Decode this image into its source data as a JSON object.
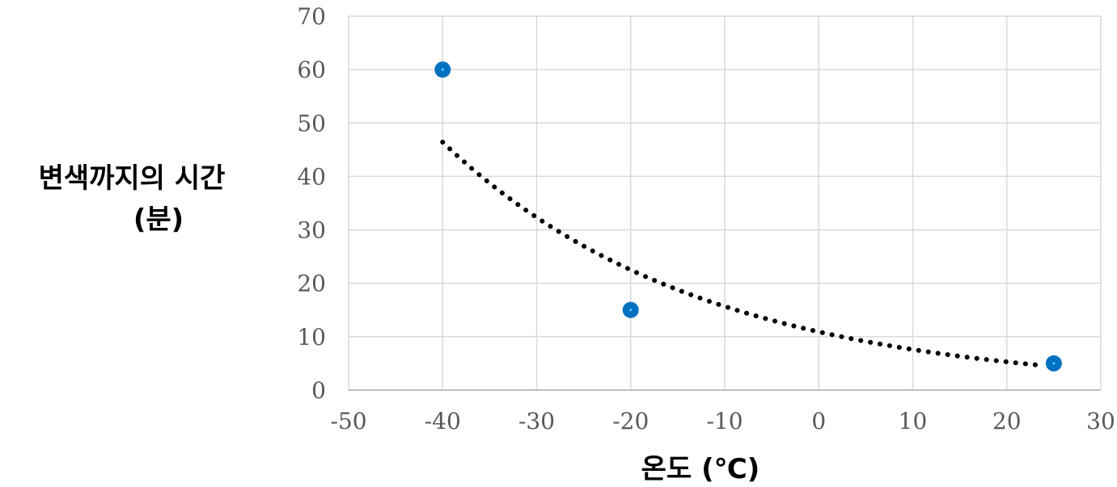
{
  "chart_data": {
    "type": "scatter",
    "title": "",
    "xlabel": "온도 (℃)",
    "ylabel_lines": [
      "변색까지의 시간",
      "(분)"
    ],
    "xlim": [
      -50,
      30
    ],
    "ylim": [
      0,
      70
    ],
    "x_ticks": [
      -50,
      -40,
      -30,
      -20,
      -10,
      0,
      10,
      20,
      30
    ],
    "y_ticks": [
      0,
      10,
      20,
      30,
      40,
      50,
      60,
      70
    ],
    "grid": true,
    "series": [
      {
        "points": [
          {
            "x": -40,
            "y": 60
          },
          {
            "x": -20,
            "y": 15
          },
          {
            "x": 25,
            "y": 5
          }
        ],
        "color": "#0070c0"
      }
    ],
    "trendline": {
      "type": "exponential",
      "style": "dotted",
      "color": "#000000",
      "x_range": [
        -40,
        24
      ],
      "a": 10.91,
      "b": -0.0362
    }
  }
}
